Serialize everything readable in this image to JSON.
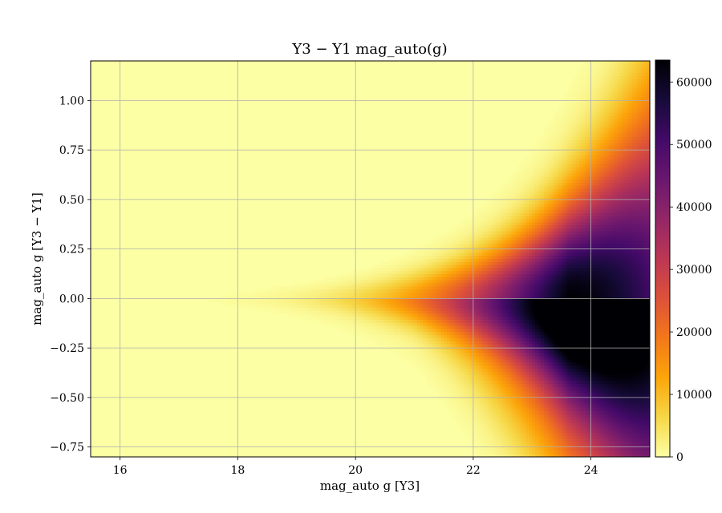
{
  "chart_data": {
    "type": "heatmap",
    "title": "Y3 − Y1 mag_auto(g)",
    "xlabel": "mag_auto g [Y3]",
    "ylabel": "mag_auto g [Y3 − Y1]",
    "xlim": [
      15.5,
      25.0
    ],
    "ylim": [
      -0.8,
      1.2
    ],
    "xticks": [
      16,
      18,
      20,
      22,
      24
    ],
    "yticks": [
      1.0,
      0.75,
      0.5,
      0.25,
      0.0,
      -0.25,
      -0.5,
      -0.75
    ],
    "xtick_labels": [
      "16",
      "18",
      "20",
      "22",
      "24"
    ],
    "ytick_labels": [
      "1.00",
      "0.75",
      "0.50",
      "0.25",
      "0.00",
      "−0.25",
      "−0.50",
      "−0.75"
    ],
    "grid": true,
    "colormap": "inferno_r",
    "colorbar": {
      "min": 0,
      "max": 63500,
      "ticks": [
        0,
        10000,
        20000,
        30000,
        40000,
        50000,
        60000
      ],
      "tick_labels": [
        "0",
        "10000",
        "20000",
        "30000",
        "40000",
        "50000",
        "60000"
      ]
    },
    "density": {
      "peak_x": 23.5,
      "peak_y": 0.0,
      "peak_count": 63500,
      "profile": [
        {
          "x": 16.0,
          "center_count": 4000
        },
        {
          "x": 18.0,
          "center_count": 7000
        },
        {
          "x": 20.0,
          "center_count": 13000
        },
        {
          "x": 22.0,
          "center_count": 30000
        },
        {
          "x": 23.5,
          "center_count": 63500
        },
        {
          "x": 24.5,
          "center_count": 40000
        }
      ]
    }
  }
}
